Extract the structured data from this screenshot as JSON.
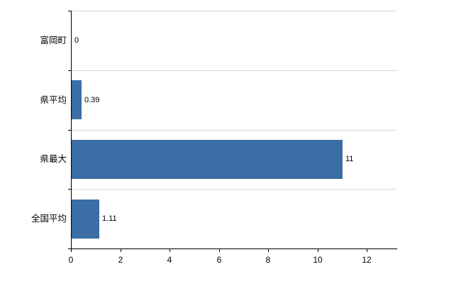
{
  "chart_data": {
    "type": "bar",
    "orientation": "horizontal",
    "title": "",
    "xlabel": "",
    "ylabel": "",
    "categories": [
      "富岡町",
      "県平均",
      "県最大",
      "全国平均"
    ],
    "values": [
      0,
      0.39,
      11,
      1.11
    ],
    "value_labels": [
      "0",
      "0.39",
      "11",
      "1.11"
    ],
    "x_ticks": [
      0,
      2,
      4,
      6,
      8,
      10,
      12
    ],
    "x_tick_labels": [
      "0",
      "2",
      "4",
      "6",
      "8",
      "10",
      "12"
    ],
    "xlim": [
      0,
      13.2
    ],
    "bar_color": "#3a6ea5",
    "grid": "horizontal-band-separators",
    "gridline_color": "#d9d9d9",
    "axis_color": "#000000",
    "legend": "none",
    "background_color": "#ffffff"
  }
}
